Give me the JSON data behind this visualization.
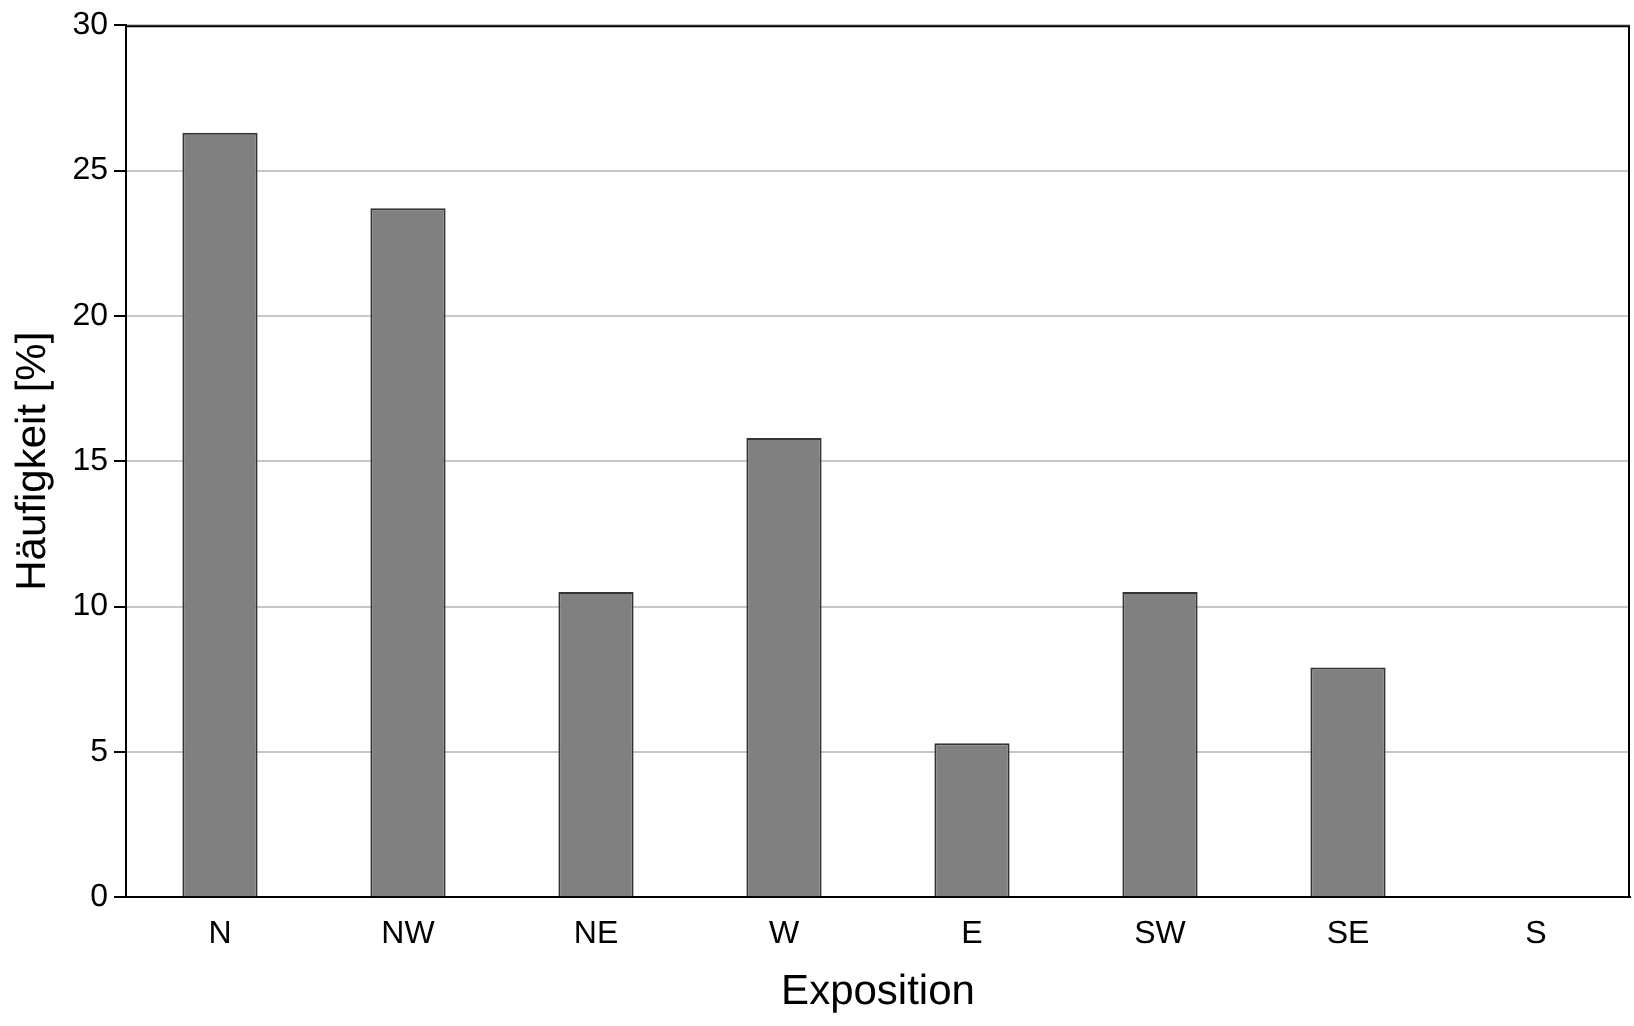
{
  "chart_data": {
    "type": "bar",
    "xlabel": "Exposition",
    "ylabel": "Häufigkeit [%]",
    "categories": [
      "N",
      "NW",
      "NE",
      "W",
      "E",
      "SW",
      "SE",
      "S"
    ],
    "values": [
      26.3,
      23.7,
      10.5,
      15.8,
      5.3,
      10.5,
      7.9,
      0
    ],
    "color": "#808080",
    "ylim": [
      0,
      30
    ],
    "yticks": [
      0,
      5,
      10,
      15,
      20,
      25,
      30
    ],
    "grid": "y",
    "legend": false
  }
}
